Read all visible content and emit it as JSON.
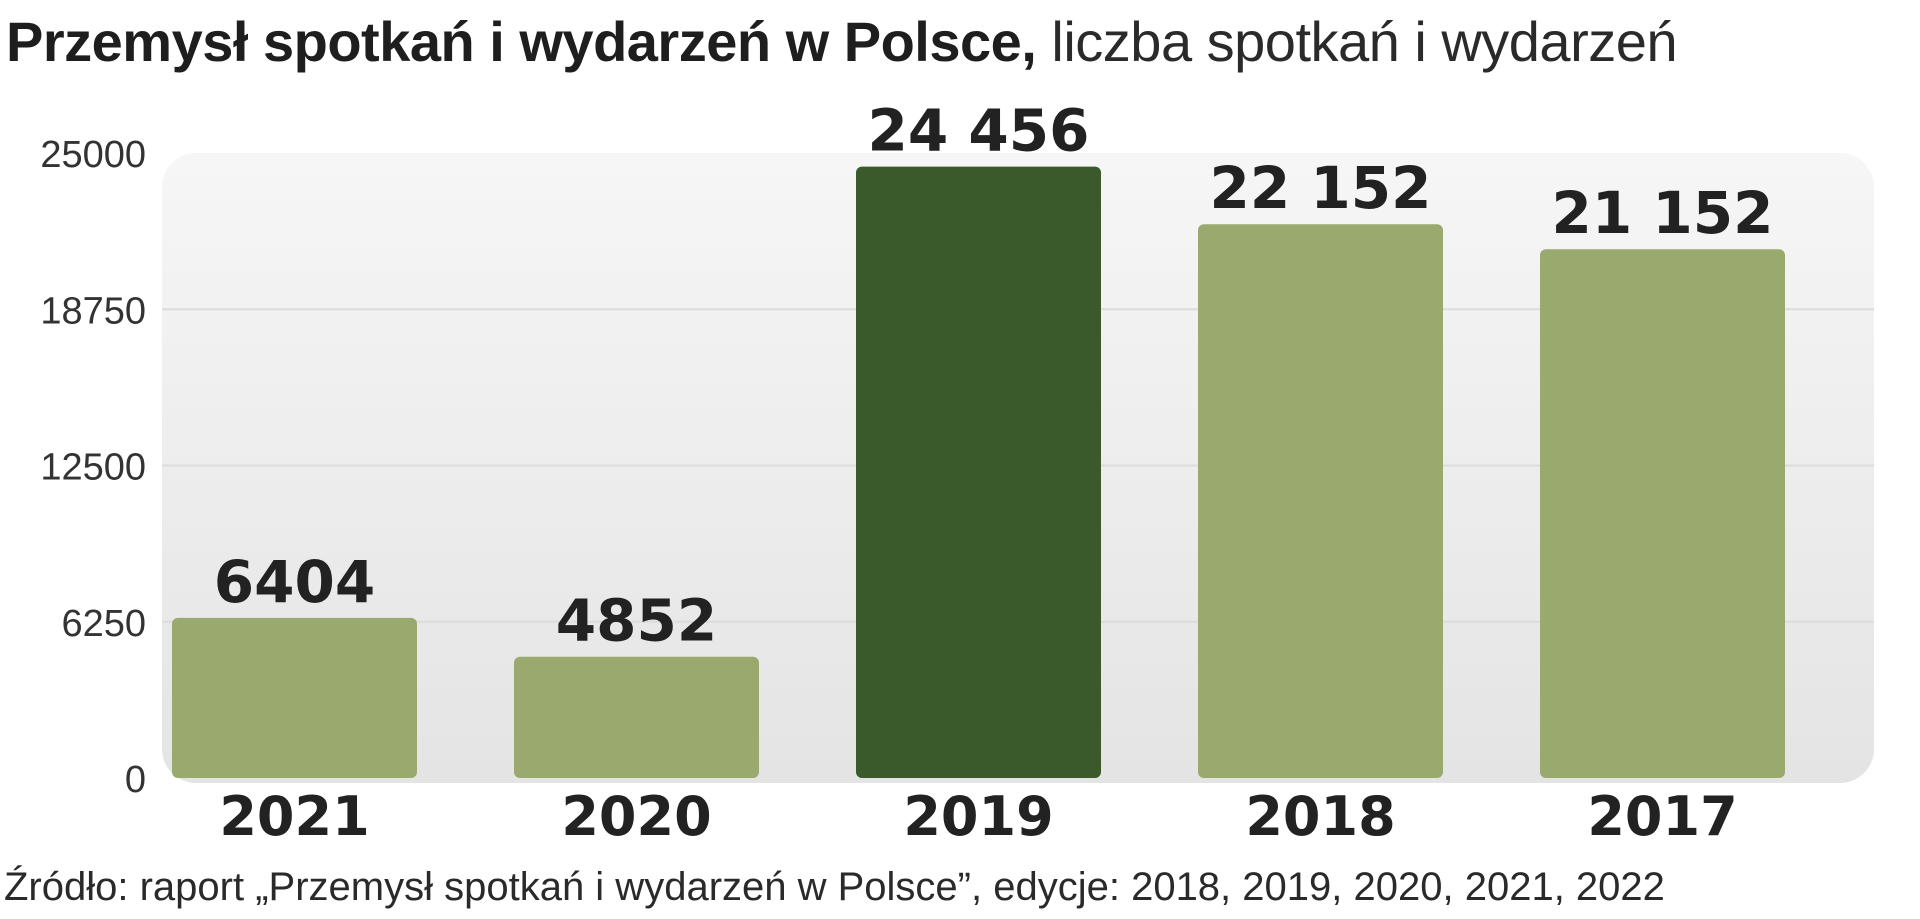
{
  "title": {
    "bold": "Przemysł spotkań i wydarzeń w Polsce,",
    "light": "liczba spotkań i wydarzeń"
  },
  "source": "Źródło: raport „Przemysł spotkań i wydarzeń w Polsce”, edycje: 2018, 2019, 2020, 2021, 2022",
  "colors": {
    "bar": "#9aaa6e",
    "bar_highlight": "#3a5a2c",
    "plot_background_top": "#f6f6f6",
    "plot_background_bottom": "#e4e4e4",
    "gridline": "#dcdcdc",
    "label": "#222222"
  },
  "chart_data": {
    "type": "bar",
    "categories": [
      "2021",
      "2020",
      "2019",
      "2018",
      "2017"
    ],
    "values": [
      6404,
      4852,
      24456,
      22152,
      21152
    ],
    "value_labels": [
      "6404",
      "4852",
      "24 456",
      "22 152",
      "21 152"
    ],
    "highlight_index": 2,
    "ylim": [
      0,
      25000
    ],
    "yticks": [
      0,
      6250,
      12500,
      18750,
      25000
    ],
    "ytick_labels": [
      "0",
      "6250",
      "12500",
      "18750",
      "25000"
    ],
    "grid": true,
    "legend": "none"
  }
}
